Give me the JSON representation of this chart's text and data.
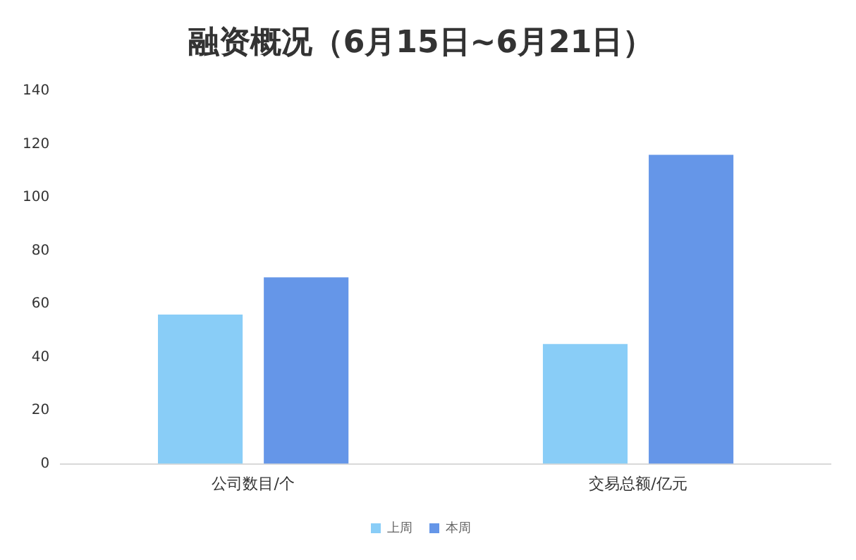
{
  "chart_data": {
    "type": "bar",
    "title": "融资概况（6月15日~6月21日）",
    "categories": [
      "公司数目/个",
      "交易总额/亿元"
    ],
    "series": [
      {
        "name": "上周",
        "color": "#89cdf7",
        "values": [
          56,
          45
        ]
      },
      {
        "name": "本周",
        "color": "#6596e8",
        "values": [
          70,
          116
        ]
      }
    ],
    "ylim": [
      0,
      140
    ],
    "yticks": [
      0,
      20,
      40,
      60,
      80,
      100,
      120,
      140
    ],
    "grid": false,
    "legend": "bottom"
  }
}
